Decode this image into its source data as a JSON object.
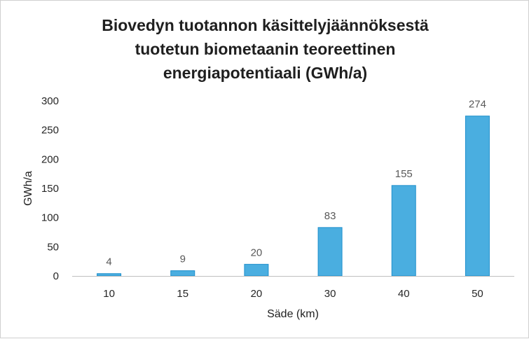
{
  "chart_data": {
    "type": "bar",
    "title_lines": [
      "Biovedyn tuotannon käsittelyjäännöksestä",
      "tuotetun biometaanin teoreettinen",
      "energiapotentiaali (GWh/a)"
    ],
    "categories": [
      "10",
      "15",
      "20",
      "30",
      "40",
      "50"
    ],
    "values": [
      4,
      9,
      20,
      83,
      155,
      274
    ],
    "data_labels": [
      "4",
      "9",
      "20",
      "83",
      "155",
      "274"
    ],
    "xlabel": "Säde (km)",
    "ylabel": "GWh/a",
    "ylim": [
      0,
      300
    ],
    "yticks": [
      0,
      50,
      100,
      150,
      200,
      250,
      300
    ],
    "grid": false,
    "legend": "none",
    "bar_color": "#4aaee0",
    "bar_edge_color": "#1f8fcc",
    "axis_color": "#bfbfbf"
  }
}
